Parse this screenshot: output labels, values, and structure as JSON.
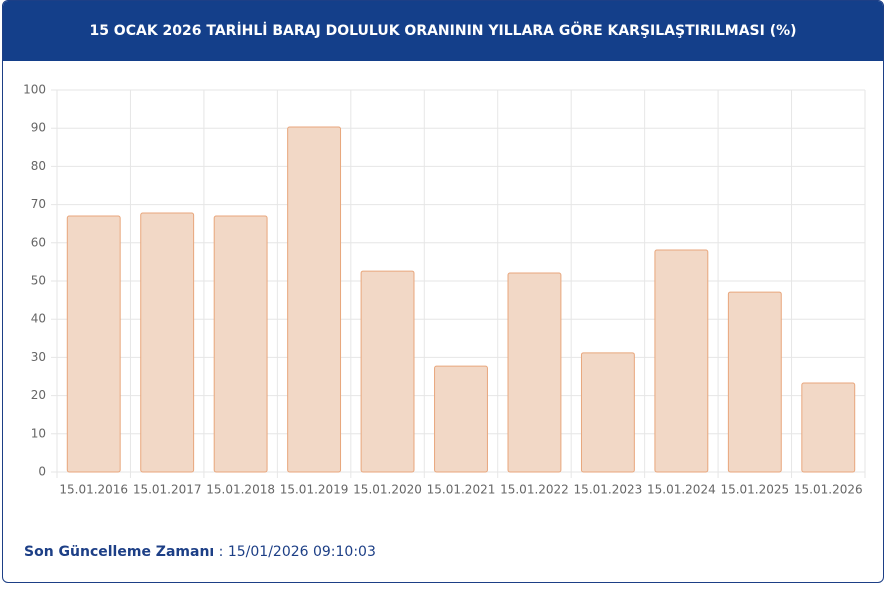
{
  "chart_data": {
    "type": "bar",
    "title": "15 OCAK 2026 TARİHLİ BARAJ DOLULUK ORANININ YILLARA GÖRE KARŞILAŞTIRILMASI (%)",
    "categories": [
      "15.01.2016",
      "15.01.2017",
      "15.01.2018",
      "15.01.2019",
      "15.01.2020",
      "15.01.2021",
      "15.01.2022",
      "15.01.2023",
      "15.01.2024",
      "15.01.2025",
      "15.01.2026"
    ],
    "values": [
      67.0,
      67.8,
      67.0,
      90.3,
      52.6,
      27.7,
      52.1,
      31.2,
      58.1,
      47.1,
      23.3
    ],
    "color": "#f2d8c6",
    "border_color": "#e8a67c",
    "ylim": [
      0,
      100
    ],
    "yticks": [
      0,
      10,
      20,
      30,
      40,
      50,
      60,
      70,
      80,
      90,
      100
    ],
    "grid": true
  },
  "footer": {
    "label": "Son Güncelleme Zamanı",
    "separator": ":",
    "value": "15/01/2026 09:10:03"
  }
}
